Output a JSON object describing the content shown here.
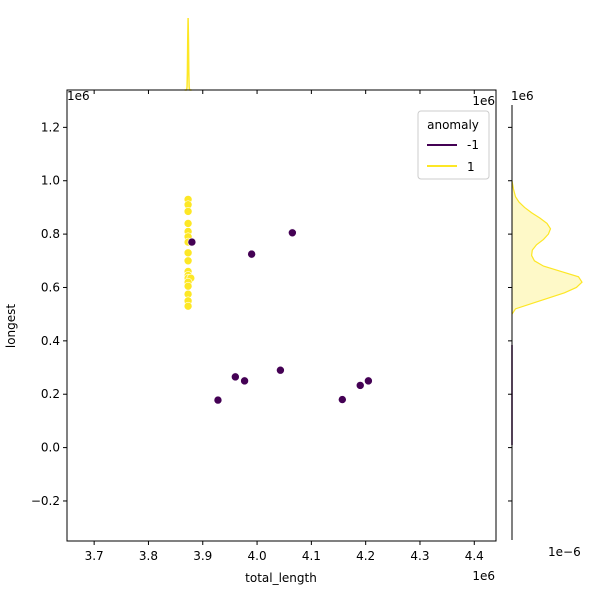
{
  "chart_data": {
    "type": "scatter",
    "title": "",
    "xlabel": "total_length",
    "ylabel": "longest",
    "x_offset_text": "1e6",
    "y_offset_text": "1e6",
    "xlim": [
      3.65,
      4.44
    ],
    "ylim": [
      -0.35,
      1.34
    ],
    "xticks": [
      3.7,
      3.8,
      3.9,
      4.0,
      4.1,
      4.2,
      4.3,
      4.4
    ],
    "yticks": [
      -0.2,
      0.0,
      0.2,
      0.4,
      0.6,
      0.8,
      1.0,
      1.2
    ],
    "x_tick_labels": [
      "3.7",
      "3.8",
      "3.9",
      "4.0",
      "4.1",
      "4.2",
      "4.3",
      "4.4"
    ],
    "y_tick_labels": [
      "−0.2",
      "0.0",
      "0.2",
      "0.4",
      "0.6",
      "0.8",
      "1.0",
      "1.2"
    ],
    "grid": false,
    "legend": {
      "title": "anomaly",
      "placement": "top-right",
      "entries": [
        {
          "label": "-1",
          "color": "#440154"
        },
        {
          "label": "1",
          "color": "#fde725"
        }
      ]
    },
    "series": [
      {
        "name": "-1",
        "color": "#440154",
        "points": [
          {
            "x": 3.88,
            "y": 0.77
          },
          {
            "x": 3.99,
            "y": 0.725
          },
          {
            "x": 4.065,
            "y": 0.805
          },
          {
            "x": 3.96,
            "y": 0.265
          },
          {
            "x": 3.977,
            "y": 0.25
          },
          {
            "x": 4.043,
            "y": 0.29
          },
          {
            "x": 3.928,
            "y": 0.178
          },
          {
            "x": 4.157,
            "y": 0.18
          },
          {
            "x": 4.19,
            "y": 0.233
          },
          {
            "x": 4.205,
            "y": 0.25
          }
        ]
      },
      {
        "name": "1",
        "color": "#fde725",
        "points": [
          {
            "x": 3.873,
            "y": 0.93
          },
          {
            "x": 3.873,
            "y": 0.91
          },
          {
            "x": 3.873,
            "y": 0.885
          },
          {
            "x": 3.873,
            "y": 0.84
          },
          {
            "x": 3.873,
            "y": 0.81
          },
          {
            "x": 3.873,
            "y": 0.79
          },
          {
            "x": 3.873,
            "y": 0.77
          },
          {
            "x": 3.873,
            "y": 0.73
          },
          {
            "x": 3.873,
            "y": 0.7
          },
          {
            "x": 3.873,
            "y": 0.66
          },
          {
            "x": 3.873,
            "y": 0.645
          },
          {
            "x": 3.873,
            "y": 0.635
          },
          {
            "x": 3.878,
            "y": 0.635
          },
          {
            "x": 3.873,
            "y": 0.62
          },
          {
            "x": 3.873,
            "y": 0.605
          },
          {
            "x": 3.873,
            "y": 0.575
          },
          {
            "x": 3.873,
            "y": 0.55
          },
          {
            "x": 3.873,
            "y": 0.53
          }
        ]
      }
    ],
    "marginal_x": {
      "series": "1",
      "peak_x": 3.873
    },
    "marginal_y": {
      "series": "1",
      "offset_text": "1e6",
      "density_offset_text": "1e−6",
      "curve": [
        [
          0.5,
          0.0
        ],
        [
          0.52,
          0.05
        ],
        [
          0.55,
          0.4
        ],
        [
          0.58,
          0.75
        ],
        [
          0.6,
          0.92
        ],
        [
          0.62,
          1.0
        ],
        [
          0.64,
          0.95
        ],
        [
          0.66,
          0.7
        ],
        [
          0.68,
          0.45
        ],
        [
          0.7,
          0.32
        ],
        [
          0.72,
          0.28
        ],
        [
          0.74,
          0.29
        ],
        [
          0.76,
          0.35
        ],
        [
          0.78,
          0.45
        ],
        [
          0.8,
          0.52
        ],
        [
          0.82,
          0.55
        ],
        [
          0.84,
          0.5
        ],
        [
          0.86,
          0.4
        ],
        [
          0.88,
          0.28
        ],
        [
          0.9,
          0.18
        ],
        [
          0.92,
          0.1
        ],
        [
          0.94,
          0.05
        ],
        [
          0.97,
          0.02
        ],
        [
          1.0,
          0.0
        ]
      ]
    }
  }
}
